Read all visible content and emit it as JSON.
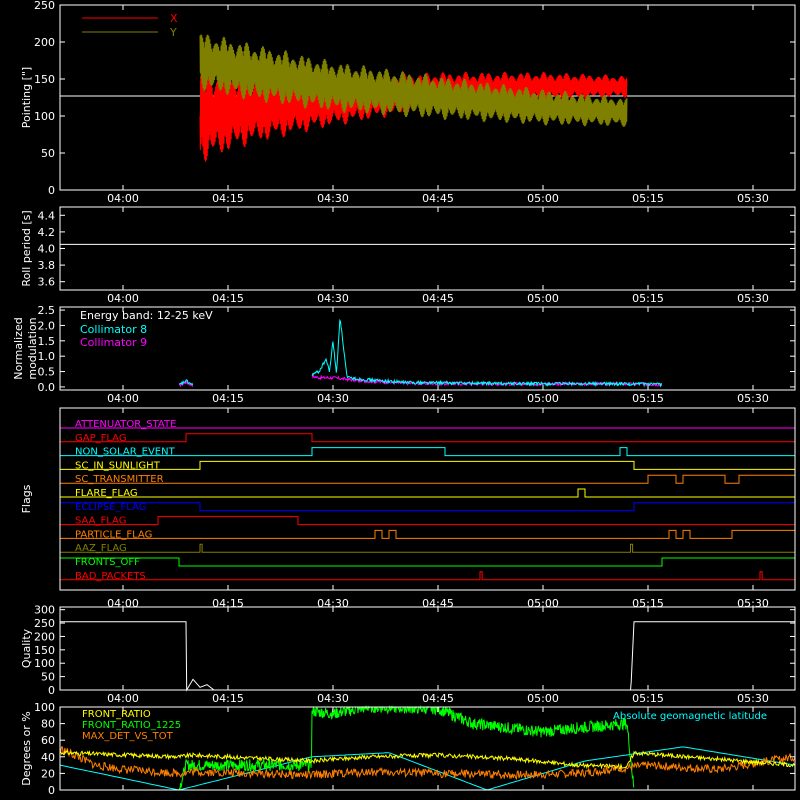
{
  "time_ticks": [
    "04:00",
    "04:15",
    "04:30",
    "04:45",
    "05:00",
    "05:15",
    "05:30"
  ],
  "chart_data": [
    {
      "type": "line",
      "name": "pointing",
      "ylabel": "Pointing [\"]",
      "ylim": [
        0,
        250
      ],
      "yticks": [
        "0",
        "50",
        "100",
        "150",
        "200",
        "250"
      ],
      "xlim": [
        "03:51",
        "05:36"
      ],
      "legend_position": "top-left",
      "series": [
        {
          "name": "X",
          "color": "#ff0000",
          "x": [
            "04:11",
            "04:18",
            "04:30",
            "04:45",
            "05:00",
            "05:12"
          ],
          "center": [
            100,
            110,
            120,
            135,
            140,
            140
          ],
          "amplitude": [
            65,
            50,
            35,
            25,
            20,
            15
          ]
        },
        {
          "name": "Y",
          "color": "#808000",
          "x": [
            "04:11",
            "04:18",
            "04:30",
            "04:45",
            "05:00",
            "05:12"
          ],
          "center": [
            175,
            160,
            140,
            125,
            112,
            105
          ],
          "amplitude": [
            40,
            40,
            35,
            30,
            25,
            20
          ]
        }
      ],
      "baseline": {
        "color": "#ffffff",
        "y": 127
      }
    },
    {
      "type": "line",
      "name": "roll-period",
      "ylabel": "Roll period [s]",
      "ylim": [
        3.5,
        4.5
      ],
      "yticks": [
        "3.6",
        "3.8",
        "4.0",
        "4.2",
        "4.4"
      ],
      "series": [
        {
          "name": "",
          "color": "#ffffff",
          "x": [
            "03:51",
            "05:36"
          ],
          "values": [
            4.05,
            4.05
          ]
        }
      ]
    },
    {
      "type": "line",
      "name": "modulation",
      "ylabel": "Normalized modulation",
      "ylim": [
        -0.1,
        2.6
      ],
      "yticks": [
        "0.0",
        "0.5",
        "1.0",
        "1.5",
        "2.0",
        "2.5"
      ],
      "annotation": "Energy band: 12-25 keV",
      "legend_position": "top-left",
      "series": [
        {
          "name": "Collimator 8",
          "color": "#00ffff",
          "x": [
            "04:08",
            "04:09",
            "04:10",
            "04:27",
            "04:28",
            "04:29",
            "04:29.5",
            "04:30",
            "04:30.5",
            "04:31",
            "04:32",
            "04:34",
            "04:40",
            "04:50",
            "05:00",
            "05:10",
            "05:17"
          ],
          "values": [
            0.05,
            0.2,
            0.05,
            0.4,
            0.5,
            0.9,
            0.5,
            1.5,
            0.4,
            2.3,
            0.3,
            0.25,
            0.15,
            0.12,
            0.1,
            0.1,
            0.08
          ]
        },
        {
          "name": "Collimator 9",
          "color": "#ff00ff",
          "x": [
            "04:08",
            "04:09",
            "04:10",
            "04:27",
            "04:28",
            "04:30",
            "04:32",
            "04:34",
            "04:40",
            "04:50",
            "05:00",
            "05:10",
            "05:17"
          ],
          "values": [
            0.05,
            0.15,
            0.05,
            0.35,
            0.3,
            0.3,
            0.25,
            0.2,
            0.12,
            0.1,
            0.1,
            0.1,
            0.08
          ]
        }
      ]
    },
    {
      "type": "line",
      "name": "flags",
      "ylabel": "Flags",
      "flags": [
        {
          "label": "ATTENUATOR_STATE",
          "color": "#ff00ff",
          "segments": []
        },
        {
          "label": "GAP_FLAG",
          "color": "#ff0000",
          "segments": [
            [
              "04:09",
              "04:27"
            ]
          ]
        },
        {
          "label": "NON_SOLAR_EVENT",
          "color": "#00ffff",
          "segments": [
            [
              "04:27",
              "04:46"
            ],
            [
              "05:11",
              "05:12"
            ]
          ]
        },
        {
          "label": "SC_IN_SUNLIGHT",
          "color": "#ffff00",
          "segments": [
            [
              "04:11",
              "05:13"
            ]
          ]
        },
        {
          "label": "SC_TRANSMITTER",
          "color": "#ff8000",
          "segments": [
            [
              "05:15",
              "05:19"
            ],
            [
              "05:20",
              "05:26"
            ],
            [
              "05:28",
              "05:36"
            ]
          ]
        },
        {
          "label": "FLARE_FLAG",
          "color": "#ffff00",
          "segments": [
            [
              "05:05",
              "05:06"
            ]
          ]
        },
        {
          "label": "ECLIPSE_FLAG",
          "color": "#0000ff",
          "segments": [
            [
              "03:51",
              "04:11"
            ],
            [
              "05:13",
              "05:36"
            ]
          ]
        },
        {
          "label": "SAA_FLAG",
          "color": "#ff0000",
          "segments": [
            [
              "04:05",
              "04:25"
            ]
          ]
        },
        {
          "label": "PARTICLE_FLAG",
          "color": "#ff8000",
          "segments": [
            [
              "04:36",
              "04:37"
            ],
            [
              "04:38",
              "04:39"
            ],
            [
              "05:18",
              "05:19"
            ],
            [
              "05:20",
              "05:21"
            ],
            [
              "05:27",
              "05:36"
            ]
          ]
        },
        {
          "label": "AAZ_FLAG",
          "color": "#808000",
          "segments": [
            [
              "04:11",
              "04:11.3"
            ],
            [
              "05:12.5",
              "05:12.8"
            ]
          ]
        },
        {
          "label": "FRONTS_OFF",
          "color": "#00ff00",
          "segments": [
            [
              "03:51",
              "04:08"
            ],
            [
              "05:17",
              "05:36"
            ]
          ]
        },
        {
          "label": "BAD_PACKETS",
          "color": "#ff0000",
          "segments": [
            [
              "04:51",
              "04:51.3"
            ],
            [
              "05:31",
              "05:31.3"
            ]
          ]
        }
      ]
    },
    {
      "type": "line",
      "name": "quality",
      "ylabel": "Quality",
      "ylim": [
        0,
        310
      ],
      "yticks": [
        "0",
        "50",
        "100",
        "150",
        "200",
        "250",
        "300"
      ],
      "series": [
        {
          "name": "",
          "color": "#ffffff",
          "x": [
            "03:51",
            "04:09",
            "04:09.1",
            "04:10",
            "04:11",
            "04:12",
            "04:13",
            "05:12.5",
            "05:12.6",
            "05:13",
            "05:36"
          ],
          "values": [
            255,
            255,
            0,
            40,
            10,
            20,
            0,
            0,
            30,
            255,
            255
          ]
        }
      ]
    },
    {
      "type": "line",
      "name": "ratios",
      "ylabel": "Degrees or %",
      "ylim": [
        0,
        100
      ],
      "yticks": [
        "0",
        "20",
        "40",
        "60",
        "80",
        "100"
      ],
      "legend_position": "top-left",
      "annotation": "Absolute geomagnetic latitude",
      "annotation_color": "#00ffff",
      "series": [
        {
          "name": "FRONT_RATIO",
          "color": "#ffff00",
          "x": [
            "03:51",
            "04:08",
            "04:10",
            "04:27",
            "04:35",
            "04:45",
            "04:55",
            "05:05",
            "05:12",
            "05:13",
            "05:36"
          ],
          "values": [
            45,
            40,
            42,
            35,
            40,
            42,
            38,
            30,
            28,
            45,
            30
          ]
        },
        {
          "name": "FRONT_RATIO_1225",
          "color": "#00ff00",
          "x": [
            "04:08",
            "04:09",
            "04:26.9",
            "04:27",
            "04:30",
            "04:35",
            "04:45",
            "04:50",
            "05:00",
            "05:05",
            "05:12",
            "05:13"
          ],
          "values": [
            0,
            30,
            30,
            95,
            92,
            100,
            98,
            80,
            70,
            75,
            80,
            0
          ]
        },
        {
          "name": "MAX_DET_VS_TOT",
          "color": "#ff8000",
          "x": [
            "03:51",
            "03:56",
            "04:00",
            "04:08",
            "04:10",
            "04:27",
            "04:35",
            "04:45",
            "04:55",
            "05:05",
            "05:15",
            "05:25",
            "05:36"
          ],
          "values": [
            50,
            30,
            25,
            20,
            22,
            18,
            22,
            20,
            18,
            20,
            30,
            25,
            40
          ]
        },
        {
          "name": "Absolute geomagnetic latitude",
          "color": "#00ffff",
          "x": [
            "03:51",
            "04:08",
            "04:27",
            "04:38",
            "04:52",
            "05:06",
            "05:20",
            "05:36"
          ],
          "values": [
            30,
            0,
            40,
            45,
            0,
            35,
            52,
            30
          ]
        }
      ]
    }
  ]
}
